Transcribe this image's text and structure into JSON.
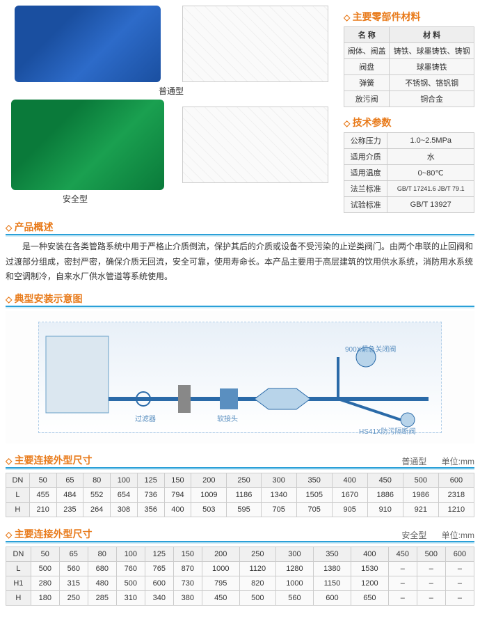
{
  "labels": {
    "type_normal": "普通型",
    "type_safe": "安全型"
  },
  "materials": {
    "title": "主要零部件材料",
    "headers": [
      "名 称",
      "材 料"
    ],
    "rows": [
      [
        "阀体、阀盖",
        "铸铁、球墨铸铁、铸钢"
      ],
      [
        "阀盘",
        "球墨铸铁"
      ],
      [
        "弹簧",
        "不锈钢、铬钒钢"
      ],
      [
        "放污阀",
        "铜合金"
      ]
    ]
  },
  "tech": {
    "title": "技术参数",
    "rows": [
      [
        "公称压力",
        "1.0~2.5MPa"
      ],
      [
        "适用介质",
        "水"
      ],
      [
        "适用温度",
        "0~80℃"
      ],
      [
        "法兰标准",
        "GB/T 17241.6 JB/T 79.1"
      ],
      [
        "试验标准",
        "GB/T 13927"
      ]
    ]
  },
  "overview": {
    "title": "产品概述",
    "text": "是一种安装在各类管路系统中用于严格止介质倒流，保护其后的介质或设备不受污染的止逆类阀门。由两个串联的止回阀和过渡部分组成，密封严密，确保介质无回流，安全可靠，使用寿命长。本产品主要用于高层建筑的饮用供水系统，消防用水系统和空调制冷，自来水厂供水管道等系统使用。"
  },
  "install": {
    "title": "典型安装示意图",
    "annotations": [
      "过滤器",
      "软接头",
      "900X紧急关闭阀",
      "HS41X防污隔断阀"
    ]
  },
  "dims_normal": {
    "title": "主要连接外型尺寸",
    "tag_type": "普通型",
    "tag_unit": "单位:mm",
    "headers": [
      "DN",
      "50",
      "65",
      "80",
      "100",
      "125",
      "150",
      "200",
      "250",
      "300",
      "350",
      "400",
      "450",
      "500",
      "600"
    ],
    "rows": [
      [
        "L",
        "455",
        "484",
        "552",
        "654",
        "736",
        "794",
        "1009",
        "1186",
        "1340",
        "1505",
        "1670",
        "1886",
        "1986",
        "2318"
      ],
      [
        "H",
        "210",
        "235",
        "264",
        "308",
        "356",
        "400",
        "503",
        "595",
        "705",
        "705",
        "905",
        "910",
        "921",
        "1210"
      ]
    ]
  },
  "dims_safe": {
    "title": "主要连接外型尺寸",
    "tag_type": "安全型",
    "tag_unit": "单位:mm",
    "headers": [
      "DN",
      "50",
      "65",
      "80",
      "100",
      "125",
      "150",
      "200",
      "250",
      "300",
      "350",
      "400",
      "450",
      "500",
      "600"
    ],
    "rows": [
      [
        "L",
        "500",
        "560",
        "680",
        "760",
        "765",
        "870",
        "1000",
        "1120",
        "1280",
        "1380",
        "1530",
        "–",
        "–",
        "–"
      ],
      [
        "H1",
        "280",
        "315",
        "480",
        "500",
        "600",
        "730",
        "795",
        "820",
        "1000",
        "1150",
        "1200",
        "–",
        "–",
        "–"
      ],
      [
        "H",
        "180",
        "250",
        "285",
        "310",
        "340",
        "380",
        "450",
        "500",
        "560",
        "600",
        "650",
        "–",
        "–",
        "–"
      ]
    ]
  },
  "colors": {
    "accent": "#e87a1a",
    "rule": "#2aa0d8",
    "border": "#cccccc",
    "th_bg": "#f0f0f0",
    "td_bg": "#fafafa"
  }
}
